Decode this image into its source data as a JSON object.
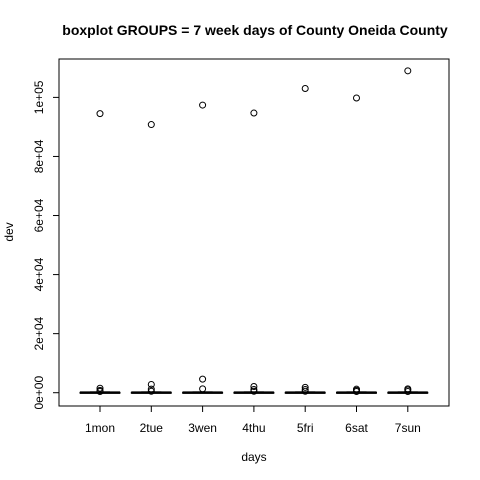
{
  "chart_data": {
    "type": "boxplot",
    "title": "boxplot GROUPS = 7 week days of County Oneida County",
    "xlabel": "days",
    "ylabel": "dev",
    "categories": [
      "1mon",
      "2tue",
      "3wen",
      "4thu",
      "5fri",
      "6sat",
      "7sun"
    ],
    "ylim": [
      -4500,
      113000
    ],
    "yticks": [
      0,
      20000,
      40000,
      60000,
      80000,
      100000
    ],
    "ytick_labels": [
      "0e+00",
      "2e+04",
      "4e+04",
      "6e+04",
      "8e+04",
      "1e+05"
    ],
    "boxes": [
      {
        "q1": 0,
        "median": 40,
        "q3": 120,
        "whisker_low": 0,
        "whisker_high": 300
      },
      {
        "q1": 0,
        "median": 40,
        "q3": 120,
        "whisker_low": 0,
        "whisker_high": 300
      },
      {
        "q1": 0,
        "median": 40,
        "q3": 120,
        "whisker_low": 0,
        "whisker_high": 300
      },
      {
        "q1": 0,
        "median": 40,
        "q3": 120,
        "whisker_low": 0,
        "whisker_high": 300
      },
      {
        "q1": 0,
        "median": 40,
        "q3": 120,
        "whisker_low": 0,
        "whisker_high": 300
      },
      {
        "q1": 0,
        "median": 40,
        "q3": 120,
        "whisker_low": 0,
        "whisker_high": 300
      },
      {
        "q1": 0,
        "median": 40,
        "q3": 120,
        "whisker_low": 0,
        "whisker_high": 300
      }
    ],
    "outliers": [
      [
        94500,
        1500,
        800,
        400
      ],
      [
        90800,
        2800,
        1200,
        500
      ],
      [
        97400,
        4600,
        1300
      ],
      [
        94700,
        2100,
        1100,
        500
      ],
      [
        103000,
        1800,
        1100,
        500
      ],
      [
        99800,
        1200,
        800,
        400
      ],
      [
        109000,
        1300,
        900,
        400
      ]
    ],
    "grid": false,
    "legend": "none"
  }
}
